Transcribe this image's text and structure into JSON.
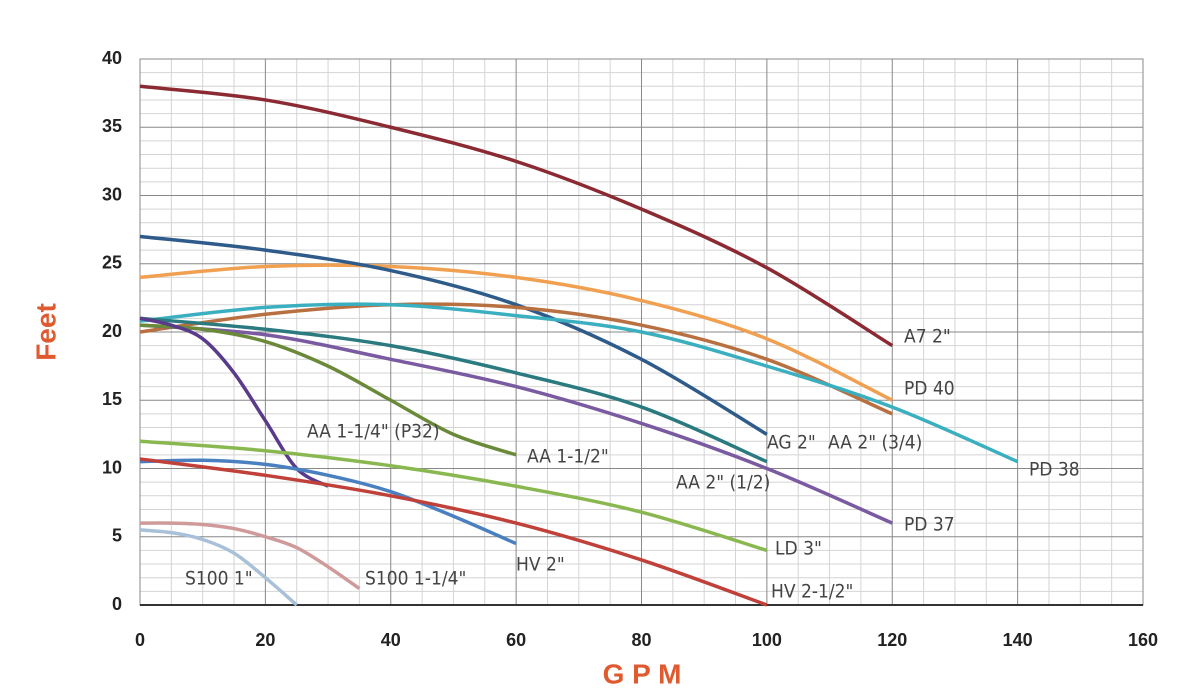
{
  "chart_data": {
    "type": "line",
    "x_label": "G P M",
    "y_label": "Feet",
    "xlim": [
      0,
      160
    ],
    "xticks": [
      0,
      20,
      40,
      60,
      80,
      100,
      120,
      140,
      160
    ],
    "ylim": [
      0,
      40
    ],
    "yticks": [
      0,
      5,
      10,
      15,
      20,
      25,
      30,
      35,
      40
    ],
    "grid": true,
    "minor_grid": true,
    "series": [
      {
        "name": "A7 2\"",
        "color": "#8b2a32",
        "x": [
          0,
          20,
          40,
          60,
          80,
          100,
          120
        ],
        "values": [
          38,
          37,
          35,
          32.5,
          29,
          24.7,
          19
        ]
      },
      {
        "name": "PD 40",
        "color": "#f0a050",
        "x": [
          0,
          20,
          40,
          60,
          80,
          100,
          120
        ],
        "values": [
          24,
          24.8,
          24.8,
          24,
          22.3,
          19.5,
          15
        ]
      },
      {
        "name": "AG 2\"",
        "color": "#2e5b8a",
        "x": [
          0,
          20,
          40,
          60,
          80,
          100
        ],
        "values": [
          27,
          26,
          24.5,
          22,
          18,
          12.5
        ]
      },
      {
        "name": "AA 2\" (3/4)",
        "color": "#b87040",
        "x": [
          0,
          20,
          40,
          60,
          80,
          100,
          120
        ],
        "values": [
          20,
          21.3,
          22,
          21.8,
          20.5,
          18,
          14
        ]
      },
      {
        "name": "PD 38",
        "color": "#3aafc0",
        "x": [
          0,
          20,
          40,
          60,
          80,
          100,
          120,
          140
        ],
        "values": [
          20.8,
          21.8,
          22,
          21.2,
          20,
          17.5,
          14.5,
          10.5
        ]
      },
      {
        "name": "AA 2\" (1/2)",
        "color": "#2a7a80",
        "x": [
          0,
          20,
          40,
          60,
          80,
          100
        ],
        "values": [
          21,
          20.2,
          19,
          17,
          14.5,
          10.5
        ]
      },
      {
        "name": "PD 37",
        "color": "#7a5aa0",
        "x": [
          0,
          20,
          40,
          60,
          80,
          100,
          120
        ],
        "values": [
          20.5,
          19.8,
          18,
          16,
          13.3,
          10,
          6
        ]
      },
      {
        "name": "AA 1-1/2\"",
        "color": "#6a8a3a",
        "x": [
          0,
          10,
          20,
          30,
          40,
          50,
          60
        ],
        "values": [
          20.5,
          20.2,
          19.3,
          17.5,
          15,
          12.5,
          11
        ]
      },
      {
        "name": "AA 1-1/4\" (P32)",
        "color": "#5a3a8a",
        "x": [
          0,
          5,
          10,
          15,
          20,
          25,
          30
        ],
        "values": [
          21,
          20.5,
          19.5,
          17,
          13.5,
          10,
          8.7
        ]
      },
      {
        "name": "LD 3\"",
        "color": "#8ab850",
        "x": [
          0,
          20,
          40,
          60,
          80,
          100
        ],
        "values": [
          12,
          11.3,
          10.2,
          8.7,
          6.8,
          4
        ]
      },
      {
        "name": "HV 2\"",
        "color": "#4a80c0",
        "x": [
          0,
          10,
          20,
          30,
          40,
          50,
          60
        ],
        "values": [
          10.5,
          10.6,
          10.3,
          9.5,
          8.3,
          6.5,
          4.5
        ]
      },
      {
        "name": "HV 2-1/2\"",
        "color": "#c0403a",
        "x": [
          0,
          20,
          40,
          60,
          80,
          100
        ],
        "values": [
          10.7,
          9.5,
          8,
          6,
          3.3,
          0
        ]
      },
      {
        "name": "S100 1-1/4\"",
        "color": "#d09a9a",
        "x": [
          0,
          5,
          10,
          15,
          20,
          25,
          30,
          35
        ],
        "values": [
          6,
          6,
          5.9,
          5.6,
          5,
          4.2,
          2.8,
          1.2
        ]
      },
      {
        "name": "S100 1\"",
        "color": "#a8c0d8",
        "x": [
          0,
          5,
          10,
          15,
          20,
          25
        ],
        "values": [
          5.5,
          5.3,
          4.8,
          3.8,
          2,
          0
        ]
      }
    ]
  }
}
